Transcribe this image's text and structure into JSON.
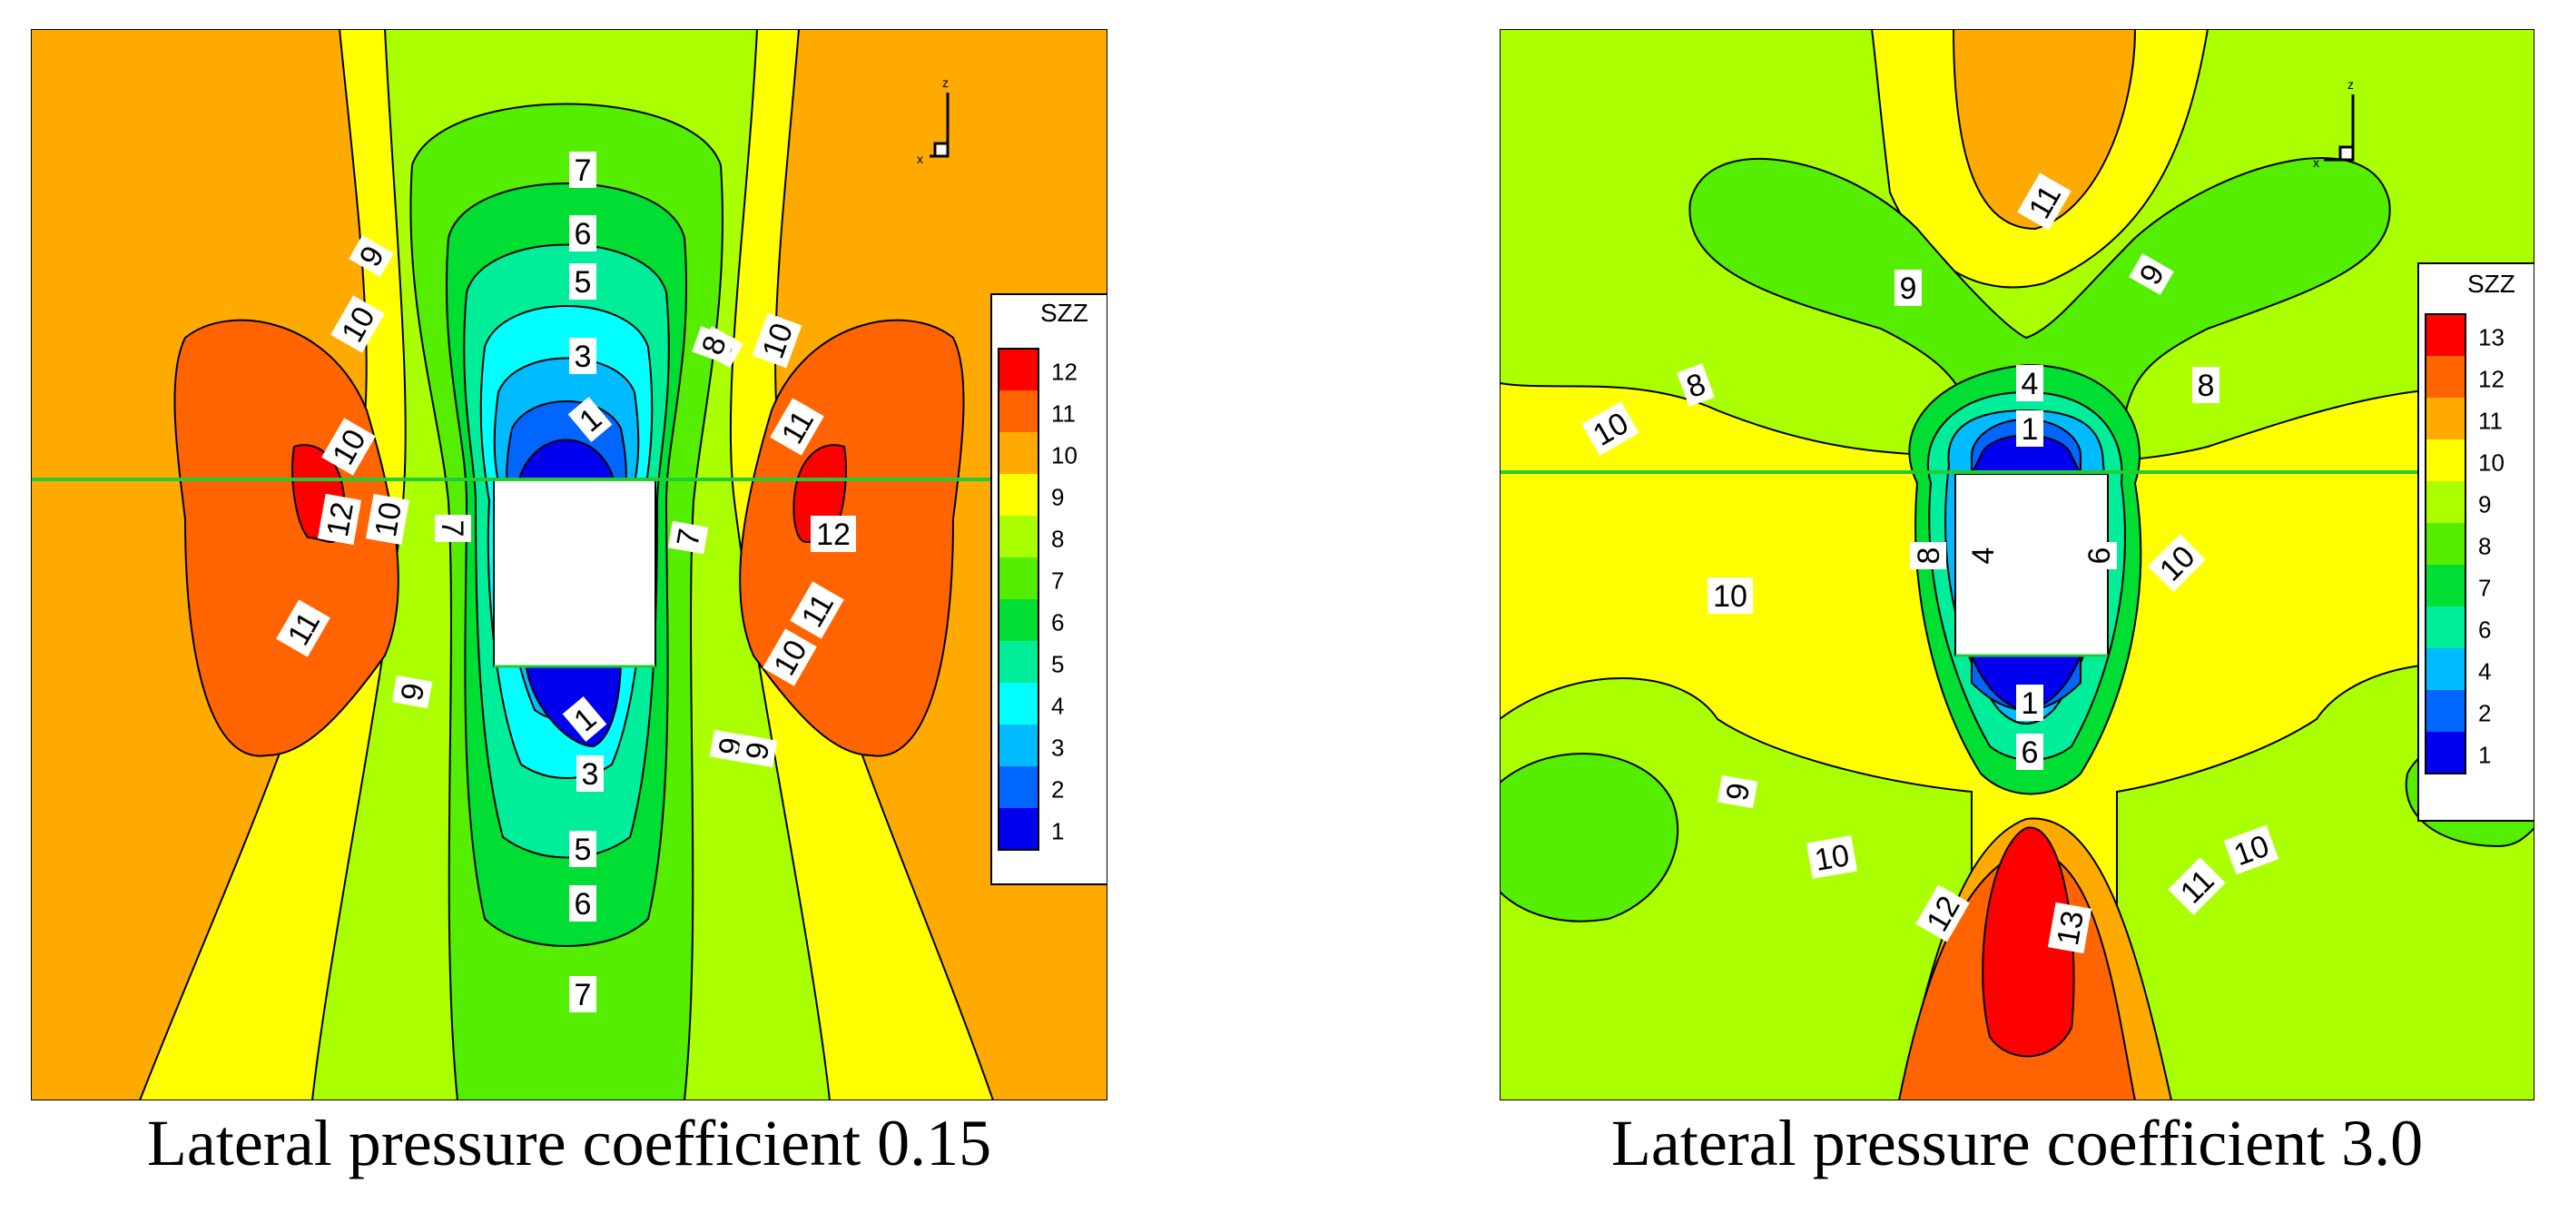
{
  "chart_data": [
    {
      "type": "heatmap",
      "title": "Lateral pressure coefficient 0.15",
      "variable": "SZZ",
      "axis_triad": {
        "x": "x",
        "z": "z"
      },
      "legend": {
        "position": "right",
        "levels": [
          {
            "value": 12,
            "color": "#ff0000"
          },
          {
            "value": 11,
            "color": "#ff6400"
          },
          {
            "value": 10,
            "color": "#ffaa00"
          },
          {
            "value": 9,
            "color": "#ffff00"
          },
          {
            "value": 8,
            "color": "#aaff00"
          },
          {
            "value": 7,
            "color": "#55ee00"
          },
          {
            "value": 6,
            "color": "#00dd33"
          },
          {
            "value": 5,
            "color": "#00ee99"
          },
          {
            "value": 4,
            "color": "#00ffff"
          },
          {
            "value": 3,
            "color": "#00bbff"
          },
          {
            "value": 2,
            "color": "#0066ff"
          },
          {
            "value": 1,
            "color": "#0000ee"
          }
        ]
      },
      "contour_labels": [
        "9",
        "10",
        "10",
        "11",
        "12",
        "10",
        "9",
        "9",
        "8",
        "7",
        "6",
        "5",
        "3",
        "1",
        "1",
        "3",
        "5",
        "6",
        "7",
        "7",
        "7",
        "8",
        "10",
        "11",
        "12",
        "11",
        "10",
        "9"
      ]
    },
    {
      "type": "heatmap",
      "title": "Lateral pressure coefficient 3.0",
      "variable": "SZZ",
      "axis_triad": {
        "x": "x",
        "z": "z"
      },
      "legend": {
        "position": "right",
        "levels": [
          {
            "value": 13,
            "color": "#ff0000"
          },
          {
            "value": 12,
            "color": "#ff6400"
          },
          {
            "value": 11,
            "color": "#ffaa00"
          },
          {
            "value": 10,
            "color": "#ffff00"
          },
          {
            "value": 9,
            "color": "#aaff00"
          },
          {
            "value": 8,
            "color": "#55ee00"
          },
          {
            "value": 7,
            "color": "#00dd33"
          },
          {
            "value": 6,
            "color": "#00ee99"
          },
          {
            "value": 4,
            "color": "#00bbff"
          },
          {
            "value": 2,
            "color": "#0066ff"
          },
          {
            "value": 1,
            "color": "#0000ee"
          }
        ]
      },
      "contour_labels": [
        "11",
        "9",
        "9",
        "8",
        "8",
        "10",
        "4",
        "1",
        "8",
        "4",
        "6",
        "10",
        "10",
        "1",
        "6",
        "9",
        "10",
        "10",
        "11",
        "12",
        "13"
      ]
    }
  ],
  "captions": {
    "left": "Lateral pressure coefficient 0.15",
    "right": "Lateral pressure coefficient 3.0"
  },
  "colors": {
    "c13": "#ff0000",
    "c12": "#ff6400",
    "c11": "#ffaa00",
    "c10": "#ffff00",
    "c9": "#aaff00",
    "c8": "#55ee00",
    "c7": "#00dd33",
    "c5": "#00ee99",
    "c4": "#00ffff",
    "c3": "#00bbff",
    "c2": "#0066ff",
    "c1": "#0000ee",
    "line": "#00cc33"
  }
}
